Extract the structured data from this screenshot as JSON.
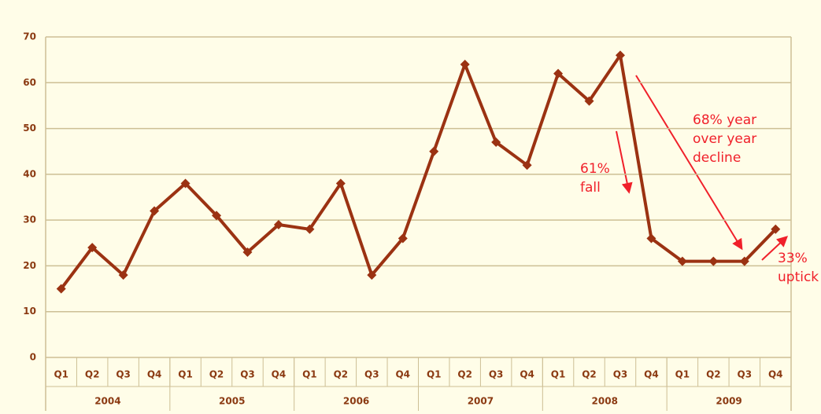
{
  "chart_data": {
    "type": "line",
    "categories": [
      "Q1",
      "Q2",
      "Q3",
      "Q4",
      "Q1",
      "Q2",
      "Q3",
      "Q4",
      "Q1",
      "Q2",
      "Q3",
      "Q4",
      "Q1",
      "Q2",
      "Q3",
      "Q4",
      "Q1",
      "Q2",
      "Q3",
      "Q4",
      "Q1",
      "Q2",
      "Q3",
      "Q4"
    ],
    "groups": [
      "2004",
      "2005",
      "2006",
      "2007",
      "2008",
      "2009"
    ],
    "series": [
      {
        "color": "#9b3212",
        "values": [
          15,
          24,
          18,
          32,
          38,
          31,
          23,
          29,
          28,
          38,
          18,
          26,
          45,
          64,
          47,
          42,
          62,
          56,
          66,
          26,
          21,
          21,
          21,
          28
        ]
      }
    ],
    "ylim": [
      0,
      70
    ],
    "yticks": [
      0,
      10,
      20,
      30,
      40,
      50,
      60,
      70
    ],
    "grid": true,
    "annotations": [
      {
        "lines": [
          "61%",
          "fall"
        ]
      },
      {
        "lines": [
          "68% year",
          "over year",
          "decline"
        ]
      },
      {
        "lines": [
          "33%",
          "uptick"
        ]
      }
    ]
  }
}
